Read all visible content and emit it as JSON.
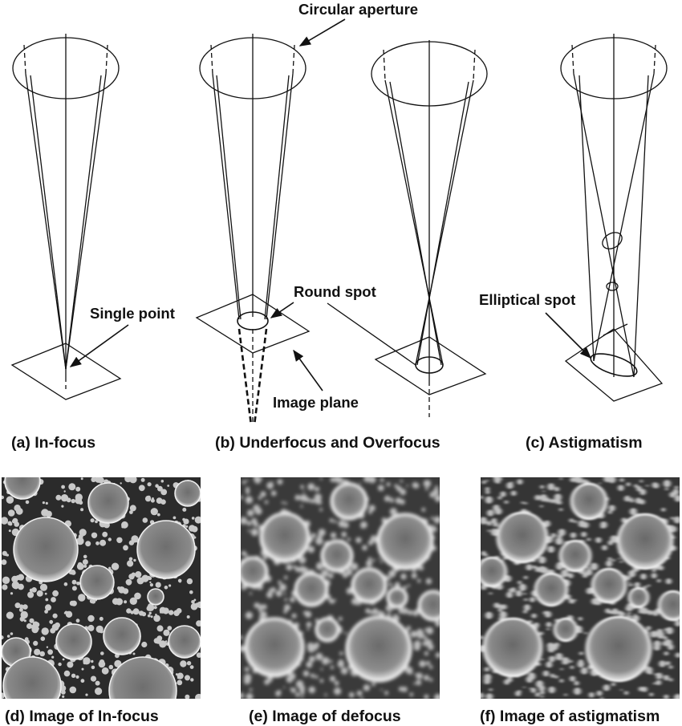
{
  "callouts": {
    "circular_aperture": "Circular aperture",
    "single_point": "Single point",
    "round_spot": "Round spot",
    "image_plane": "Image plane",
    "elliptical_spot": "Elliptical spot"
  },
  "captions": {
    "a": "(a) In-focus",
    "b": "(b) Underfocus and Overfocus",
    "c": "(c) Astigmatism",
    "d": "(d) Image of In-focus",
    "e": "(e)  Image of defocus",
    "f": "(f) Image of astigmatism"
  },
  "micrograph": {
    "description_free": true,
    "background_color": "#2a2a2a",
    "particle_color": "#b8b8b8"
  }
}
